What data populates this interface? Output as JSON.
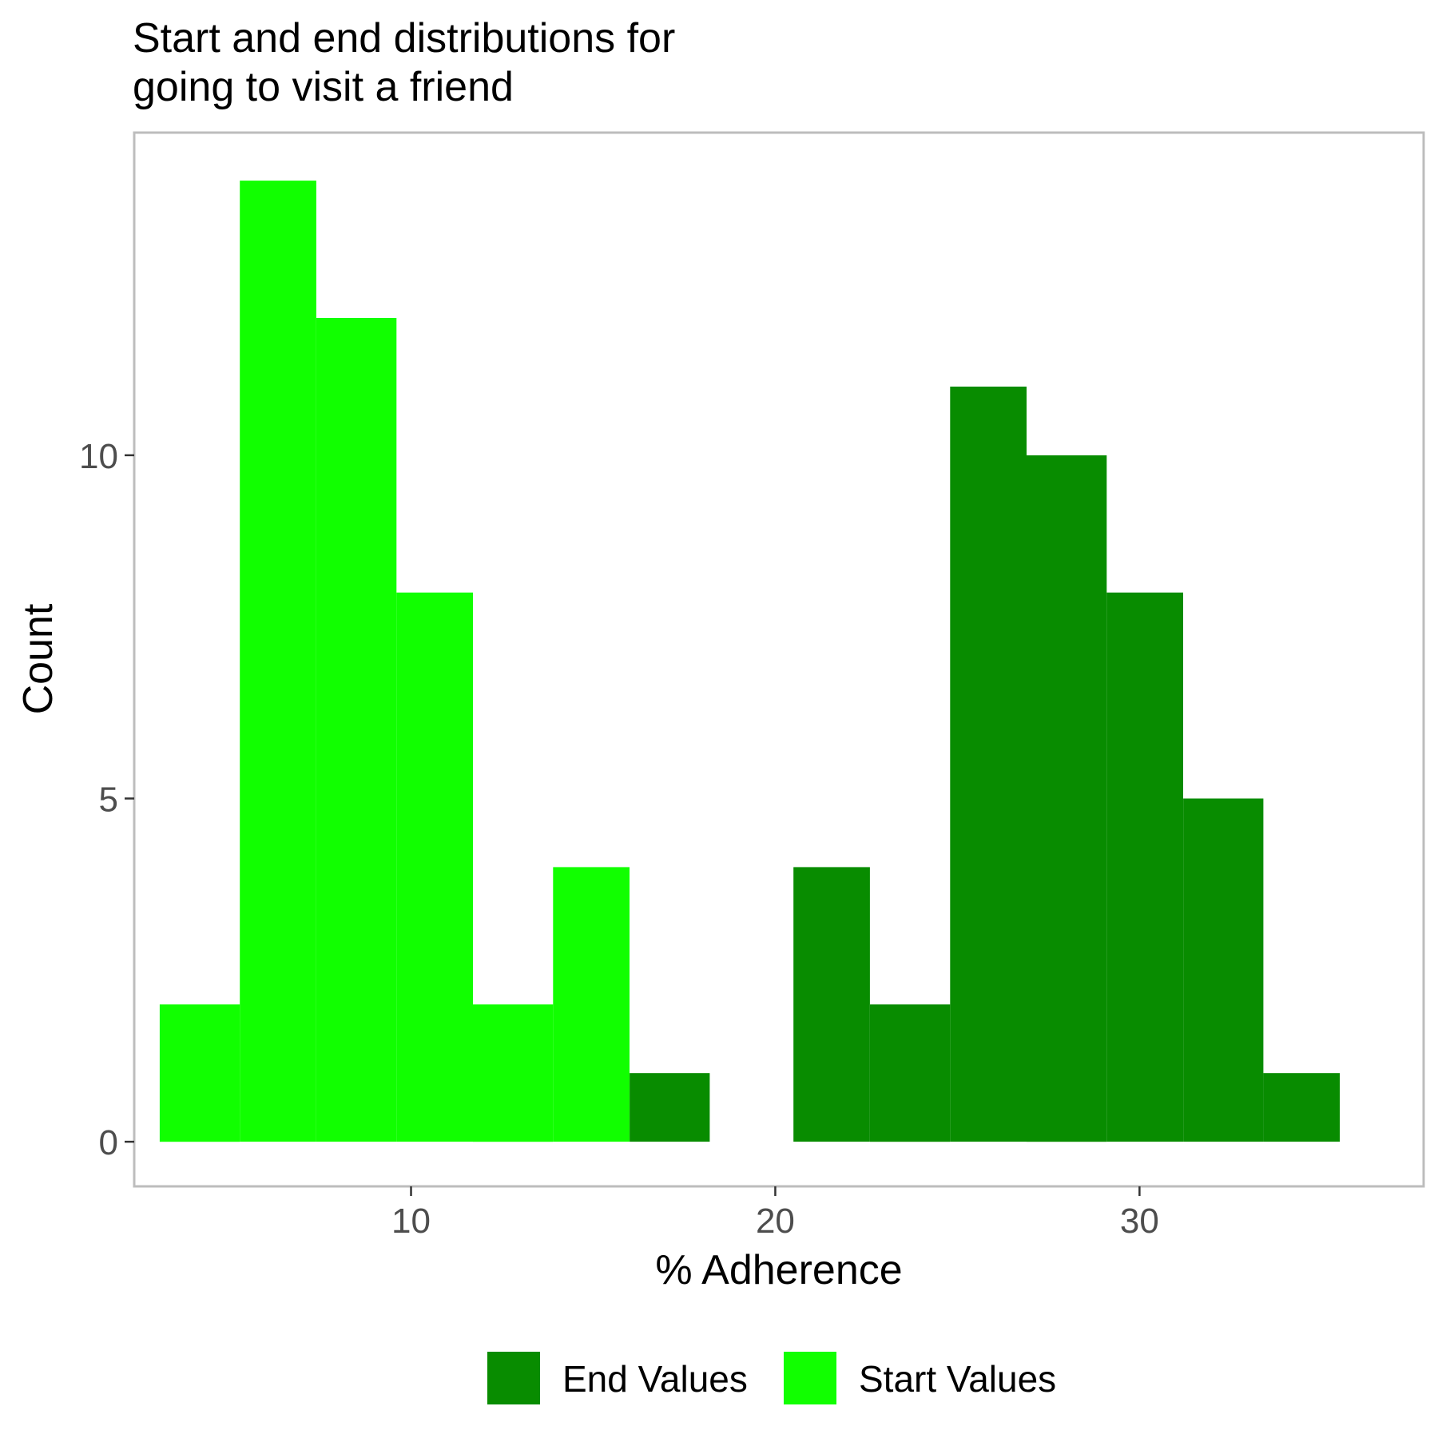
{
  "chart_data": {
    "type": "bar",
    "title_lines": [
      "Start and end distributions for",
      "going to visit a friend"
    ],
    "xlabel": "% Adherence",
    "ylabel": "Count",
    "x_ticks": [
      10,
      20,
      30
    ],
    "y_ticks": [
      0,
      5,
      10
    ],
    "xlim": [
      2.4,
      37.8
    ],
    "ylim": [
      -0.65,
      14.7
    ],
    "bin_width": 2.15,
    "grid": false,
    "legend_position": "bottom",
    "series": [
      {
        "name": "End Values",
        "color": "#088C00",
        "bins": [
          {
            "x0": 16.0,
            "x1": 18.2,
            "count": 1
          },
          {
            "x0": 20.5,
            "x1": 22.6,
            "count": 4
          },
          {
            "x0": 22.6,
            "x1": 24.8,
            "count": 2
          },
          {
            "x0": 24.8,
            "x1": 26.9,
            "count": 11
          },
          {
            "x0": 26.9,
            "x1": 29.1,
            "count": 10
          },
          {
            "x0": 29.1,
            "x1": 31.2,
            "count": 8
          },
          {
            "x0": 31.2,
            "x1": 33.4,
            "count": 5
          },
          {
            "x0": 33.4,
            "x1": 35.5,
            "count": 1
          }
        ]
      },
      {
        "name": "Start Values",
        "color": "#11FF00",
        "bins": [
          {
            "x0": 3.1,
            "x1": 5.3,
            "count": 2
          },
          {
            "x0": 5.3,
            "x1": 7.4,
            "count": 14
          },
          {
            "x0": 7.4,
            "x1": 9.6,
            "count": 12
          },
          {
            "x0": 9.6,
            "x1": 11.7,
            "count": 8
          },
          {
            "x0": 11.7,
            "x1": 13.9,
            "count": 2
          },
          {
            "x0": 13.9,
            "x1": 16.0,
            "count": 4
          }
        ]
      }
    ]
  }
}
